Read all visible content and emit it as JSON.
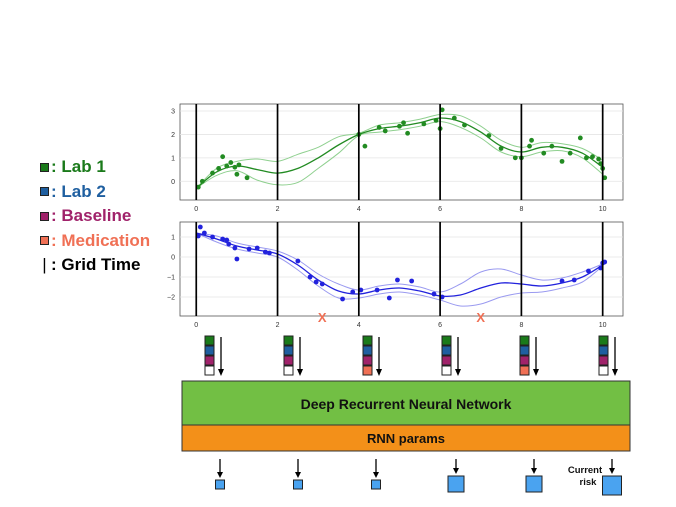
{
  "legend": {
    "items": [
      {
        "label": ": Lab 1",
        "color": "#1a7a1a",
        "kind": "square"
      },
      {
        "label": ": Lab 2",
        "color": "#1f5fa0",
        "kind": "square"
      },
      {
        "label": ": Baseline",
        "color": "#a0226a",
        "kind": "square"
      },
      {
        "label": ": Medication",
        "color": "#f07055",
        "kind": "square"
      },
      {
        "label": ": Grid Time",
        "color": "#000000",
        "kind": "bar"
      }
    ]
  },
  "colors": {
    "lab1": "#228b22",
    "lab2": "#2222dd",
    "medication": "#f07055",
    "rnn_box": "#72bf44",
    "params_box": "#f39019",
    "output_box": "#4aa3f0"
  },
  "grid_times": [
    0,
    2,
    4,
    6,
    8,
    10
  ],
  "medication_marks": [
    {
      "x": 3.1,
      "label": "X"
    },
    {
      "x": 7.0,
      "label": "X"
    }
  ],
  "chart_data": [
    {
      "type": "line",
      "series_name": "Lab 1",
      "xlim": [
        -0.4,
        10.5
      ],
      "ylim": [
        -0.8,
        3.3
      ],
      "xticks": [
        "0",
        "2",
        "4",
        "6",
        "8",
        "10"
      ],
      "yticks": [
        "0",
        "1",
        "2",
        "3"
      ],
      "x": [
        0,
        0.5,
        1,
        1.5,
        2,
        2.5,
        3,
        3.5,
        4,
        4.5,
        5,
        5.5,
        6,
        6.5,
        7,
        7.5,
        8,
        8.5,
        9,
        9.5,
        10
      ],
      "mean": [
        -0.3,
        0.4,
        0.65,
        0.5,
        0.35,
        0.55,
        1.0,
        1.55,
        2.0,
        2.25,
        2.35,
        2.5,
        2.7,
        2.55,
        2.1,
        1.5,
        1.25,
        1.45,
        1.45,
        1.2,
        0.6
      ],
      "lower": [
        -0.3,
        0.25,
        0.45,
        0.05,
        -0.15,
        -0.05,
        0.55,
        1.2,
        1.95,
        2.1,
        2.2,
        2.35,
        2.55,
        2.3,
        1.85,
        1.25,
        1.05,
        1.25,
        1.3,
        1.0,
        0.3
      ],
      "upper": [
        -0.3,
        0.55,
        0.85,
        0.95,
        0.85,
        1.15,
        1.45,
        1.9,
        2.05,
        2.4,
        2.5,
        2.65,
        2.85,
        2.8,
        2.35,
        1.75,
        1.45,
        1.65,
        1.6,
        1.4,
        0.9
      ],
      "points": [
        [
          0.05,
          -0.25
        ],
        [
          0.15,
          0.0
        ],
        [
          0.4,
          0.35
        ],
        [
          0.55,
          0.55
        ],
        [
          0.65,
          1.05
        ],
        [
          0.75,
          0.65
        ],
        [
          0.85,
          0.8
        ],
        [
          0.95,
          0.6
        ],
        [
          1.0,
          0.3
        ],
        [
          1.05,
          0.7
        ],
        [
          1.25,
          0.15
        ],
        [
          4.0,
          2.0
        ],
        [
          4.15,
          1.5
        ],
        [
          4.5,
          2.3
        ],
        [
          4.65,
          2.15
        ],
        [
          5.0,
          2.35
        ],
        [
          5.1,
          2.5
        ],
        [
          5.2,
          2.05
        ],
        [
          5.6,
          2.45
        ],
        [
          5.9,
          2.6
        ],
        [
          6.0,
          2.25
        ],
        [
          6.05,
          3.05
        ],
        [
          6.35,
          2.7
        ],
        [
          6.6,
          2.4
        ],
        [
          7.2,
          1.95
        ],
        [
          7.5,
          1.4
        ],
        [
          7.85,
          1.0
        ],
        [
          8.0,
          1.0
        ],
        [
          8.2,
          1.5
        ],
        [
          8.25,
          1.75
        ],
        [
          8.55,
          1.2
        ],
        [
          8.75,
          1.5
        ],
        [
          9.0,
          0.85
        ],
        [
          9.2,
          1.2
        ],
        [
          9.45,
          1.85
        ],
        [
          9.6,
          1.0
        ],
        [
          9.75,
          1.05
        ],
        [
          9.9,
          0.95
        ],
        [
          9.95,
          0.75
        ],
        [
          10.0,
          0.55
        ],
        [
          10.05,
          0.15
        ]
      ]
    },
    {
      "type": "line",
      "series_name": "Lab 2",
      "xlim": [
        -0.4,
        10.5
      ],
      "ylim": [
        -2.95,
        1.75
      ],
      "xticks": [
        "0",
        "2",
        "4",
        "6",
        "8",
        "10"
      ],
      "yticks": [
        "1",
        "0",
        "-1",
        "-2"
      ],
      "x": [
        0,
        0.5,
        1,
        1.5,
        2,
        2.5,
        3,
        3.5,
        4,
        4.5,
        5,
        5.5,
        6,
        6.5,
        7,
        7.5,
        8,
        8.5,
        9,
        9.5,
        10
      ],
      "mean": [
        1.2,
        0.9,
        0.55,
        0.35,
        0.15,
        -0.4,
        -1.15,
        -1.7,
        -1.85,
        -1.65,
        -1.55,
        -1.7,
        -1.95,
        -1.9,
        -1.55,
        -1.3,
        -1.35,
        -1.45,
        -1.3,
        -1.0,
        -0.4
      ],
      "lower": [
        1.2,
        0.75,
        0.4,
        0.2,
        0.0,
        -0.65,
        -1.45,
        -2.05,
        -2.05,
        -1.85,
        -1.75,
        -1.9,
        -2.15,
        -2.45,
        -2.35,
        -2.0,
        -1.8,
        -1.75,
        -1.55,
        -1.25,
        -0.45
      ],
      "upper": [
        1.2,
        1.05,
        0.7,
        0.5,
        0.3,
        -0.15,
        -0.85,
        -1.35,
        -1.65,
        -1.45,
        -1.35,
        -1.5,
        -1.75,
        -1.35,
        -0.75,
        -0.6,
        -0.9,
        -1.15,
        -1.05,
        -0.75,
        -0.35
      ],
      "points": [
        [
          0.05,
          1.05
        ],
        [
          0.1,
          1.5
        ],
        [
          0.2,
          1.2
        ],
        [
          0.4,
          1.0
        ],
        [
          0.65,
          0.9
        ],
        [
          0.75,
          0.85
        ],
        [
          0.8,
          0.65
        ],
        [
          0.95,
          0.45
        ],
        [
          1.0,
          -0.1
        ],
        [
          1.3,
          0.4
        ],
        [
          1.5,
          0.45
        ],
        [
          1.7,
          0.25
        ],
        [
          1.8,
          0.2
        ],
        [
          2.5,
          -0.2
        ],
        [
          2.8,
          -1.0
        ],
        [
          2.95,
          -1.25
        ],
        [
          3.1,
          -1.35
        ],
        [
          3.6,
          -2.1
        ],
        [
          3.85,
          -1.75
        ],
        [
          4.05,
          -1.65
        ],
        [
          4.45,
          -1.65
        ],
        [
          4.75,
          -2.05
        ],
        [
          4.95,
          -1.15
        ],
        [
          5.3,
          -1.2
        ],
        [
          5.85,
          -1.85
        ],
        [
          6.05,
          -2.0
        ],
        [
          9.0,
          -1.2
        ],
        [
          9.3,
          -1.15
        ],
        [
          9.65,
          -0.7
        ],
        [
          9.95,
          -0.55
        ],
        [
          10.0,
          -0.3
        ],
        [
          10.05,
          -0.25
        ]
      ]
    }
  ],
  "inputs": {
    "columns": [
      {
        "grid_time": 0,
        "slots": [
          "lab1",
          "lab2",
          "baseline",
          "empty"
        ]
      },
      {
        "grid_time": 2,
        "slots": [
          "lab1",
          "lab2",
          "baseline",
          "empty"
        ]
      },
      {
        "grid_time": 4,
        "slots": [
          "lab1",
          "lab2",
          "baseline",
          "medication"
        ]
      },
      {
        "grid_time": 6,
        "slots": [
          "lab1",
          "lab2",
          "baseline",
          "empty"
        ]
      },
      {
        "grid_time": 8,
        "slots": [
          "lab1",
          "lab2",
          "baseline",
          "medication"
        ]
      },
      {
        "grid_time": 10,
        "slots": [
          "lab1",
          "lab2",
          "baseline",
          "empty"
        ]
      }
    ]
  },
  "network": {
    "rnn_label": "Deep Recurrent Neural Network",
    "params_label": "RNN params"
  },
  "outputs": {
    "risk_sizes": [
      "small",
      "small",
      "small",
      "large",
      "large",
      "large"
    ],
    "current_risk_label_1": "Current",
    "current_risk_label_2": "risk"
  }
}
